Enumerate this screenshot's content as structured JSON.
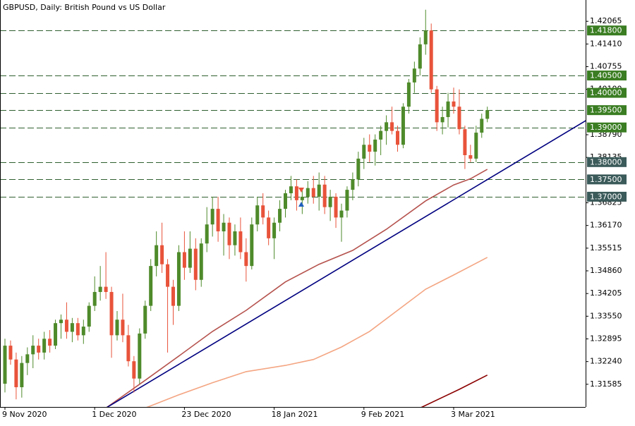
{
  "chart_data": {
    "type": "candlestick",
    "title": "GBPUSD, Daily:  British Pound vs US Dollar",
    "up_color": "#4e8a2a",
    "down_color": "#e8533a",
    "ylim": [
      1.3093,
      1.4268
    ],
    "yticks": [
      {
        "value": 1.42065,
        "label": "1.42065"
      },
      {
        "value": 1.4141,
        "label": "1.41410"
      },
      {
        "value": 1.40755,
        "label": "1.40755"
      },
      {
        "value": 1.401,
        "label": "1.40100"
      },
      {
        "value": 1.3879,
        "label": "1.38790"
      },
      {
        "value": 1.38135,
        "label": "1.38135"
      },
      {
        "value": 1.36825,
        "label": "1.36825"
      },
      {
        "value": 1.3617,
        "label": "1.36170"
      },
      {
        "value": 1.35515,
        "label": "1.35515"
      },
      {
        "value": 1.3486,
        "label": "1.34860"
      },
      {
        "value": 1.34205,
        "label": "1.34205"
      },
      {
        "value": 1.3355,
        "label": "1.33550"
      },
      {
        "value": 1.32895,
        "label": "1.32895"
      },
      {
        "value": 1.3224,
        "label": "1.32240"
      },
      {
        "value": 1.31585,
        "label": "1.31585"
      }
    ],
    "levels": [
      {
        "value": 1.418,
        "label": "1.41800",
        "color": "#3a7d22"
      },
      {
        "value": 1.405,
        "label": "1.40500",
        "color": "#3a7d22"
      },
      {
        "value": 1.4,
        "label": "1.40000",
        "color": "#3a7d22"
      },
      {
        "value": 1.395,
        "label": "1.39500",
        "color": "#3a7d22"
      },
      {
        "value": 1.39,
        "label": "1.39000",
        "color": "#3a7d22"
      },
      {
        "value": 1.38,
        "label": "1.38000",
        "color": "#3b5a5a"
      },
      {
        "value": 1.375,
        "label": "1.37500",
        "color": "#3b5a5a"
      },
      {
        "value": 1.37,
        "label": "1.37000",
        "color": "#3b5a5a"
      }
    ],
    "categories": [
      "9 Nov 2020",
      null,
      null,
      null,
      null,
      null,
      null,
      null,
      null,
      null,
      null,
      null,
      null,
      null,
      null,
      null,
      "1 Dec 2020",
      null,
      null,
      null,
      null,
      null,
      null,
      null,
      null,
      null,
      null,
      null,
      null,
      null,
      null,
      null,
      "23 Dec 2020",
      null,
      null,
      null,
      null,
      null,
      null,
      null,
      null,
      null,
      null,
      null,
      null,
      null,
      null,
      null,
      "18 Jan 2021",
      null,
      null,
      null,
      null,
      null,
      null,
      null,
      null,
      null,
      null,
      null,
      null,
      null,
      null,
      null,
      "9 Feb 2021",
      null,
      null,
      null,
      null,
      null,
      null,
      null,
      null,
      null,
      null,
      null,
      null,
      null,
      null,
      null,
      "3 Mar 2021",
      null,
      null,
      null,
      null,
      null,
      null
    ],
    "open": [
      1.316,
      1.327,
      1.323,
      1.315,
      1.322,
      1.3245,
      1.327,
      1.325,
      1.329,
      1.327,
      1.3335,
      1.3345,
      1.331,
      1.3335,
      1.33,
      1.3325,
      1.3385,
      1.3425,
      1.344,
      1.3425,
      1.33,
      1.3345,
      1.33,
      1.3225,
      1.3175,
      1.3305,
      1.3385,
      1.35,
      1.356,
      1.3505,
      1.344,
      1.3385,
      1.354,
      1.3495,
      1.355,
      1.346,
      1.3565,
      1.362,
      1.3665,
      1.36,
      1.3625,
      1.356,
      1.36,
      1.354,
      1.35,
      1.362,
      1.3675,
      1.364,
      1.358,
      1.3625,
      1.3665,
      1.371,
      1.373,
      1.369,
      1.37,
      1.3725,
      1.37,
      1.3735,
      1.367,
      1.37,
      1.364,
      1.366,
      1.372,
      1.375,
      1.381,
      1.385,
      1.383,
      1.3865,
      1.389,
      1.3915,
      1.389,
      1.385,
      1.396,
      1.403,
      1.407,
      1.414,
      1.418,
      1.401,
      1.3915,
      1.393,
      1.3975,
      1.396,
      1.3895,
      1.382,
      1.381,
      1.3885,
      1.3925
    ],
    "high": [
      1.329,
      1.3285,
      1.325,
      1.324,
      1.3265,
      1.33,
      1.329,
      1.331,
      1.3315,
      1.3345,
      1.336,
      1.3395,
      1.335,
      1.335,
      1.3345,
      1.3395,
      1.347,
      1.35,
      1.354,
      1.344,
      1.337,
      1.342,
      1.333,
      1.324,
      1.332,
      1.34,
      1.352,
      1.36,
      1.3625,
      1.352,
      1.346,
      1.356,
      1.36,
      1.36,
      1.358,
      1.358,
      1.367,
      1.37,
      1.37,
      1.365,
      1.364,
      1.362,
      1.364,
      1.358,
      1.364,
      1.37,
      1.371,
      1.366,
      1.364,
      1.369,
      1.372,
      1.376,
      1.375,
      1.372,
      1.3745,
      1.376,
      1.377,
      1.376,
      1.372,
      1.371,
      1.368,
      1.373,
      1.377,
      1.383,
      1.387,
      1.388,
      1.388,
      1.3905,
      1.3935,
      1.396,
      1.3905,
      1.397,
      1.404,
      1.409,
      1.416,
      1.424,
      1.42,
      1.402,
      1.396,
      1.4,
      1.4015,
      1.401,
      1.3905,
      1.385,
      1.3905,
      1.394,
      1.396
    ],
    "low": [
      1.3135,
      1.3215,
      1.3115,
      1.312,
      1.3185,
      1.3205,
      1.323,
      1.323,
      1.325,
      1.326,
      1.329,
      1.329,
      1.328,
      1.3285,
      1.3275,
      1.331,
      1.337,
      1.34,
      1.3405,
      1.3235,
      1.3285,
      1.328,
      1.321,
      1.3135,
      1.316,
      1.329,
      1.337,
      1.347,
      1.348,
      1.325,
      1.333,
      1.337,
      1.346,
      1.348,
      1.343,
      1.344,
      1.354,
      1.3585,
      1.357,
      1.353,
      1.352,
      1.353,
      1.352,
      1.3455,
      1.349,
      1.36,
      1.362,
      1.356,
      1.352,
      1.36,
      1.364,
      1.369,
      1.366,
      1.365,
      1.368,
      1.368,
      1.366,
      1.365,
      1.363,
      1.361,
      1.357,
      1.364,
      1.369,
      1.373,
      1.378,
      1.38,
      1.379,
      1.382,
      1.385,
      1.388,
      1.383,
      1.384,
      1.394,
      1.4,
      1.405,
      1.411,
      1.4,
      1.389,
      1.388,
      1.39,
      1.394,
      1.388,
      1.378,
      1.38,
      1.38,
      1.387,
      1.3915
    ],
    "close": [
      1.327,
      1.323,
      1.315,
      1.322,
      1.3245,
      1.327,
      1.325,
      1.329,
      1.327,
      1.3335,
      1.3345,
      1.331,
      1.3335,
      1.33,
      1.3325,
      1.3385,
      1.3425,
      1.344,
      1.3425,
      1.33,
      1.3345,
      1.33,
      1.3225,
      1.3175,
      1.3305,
      1.3385,
      1.35,
      1.356,
      1.3505,
      1.344,
      1.3385,
      1.354,
      1.3495,
      1.355,
      1.346,
      1.3565,
      1.362,
      1.3665,
      1.36,
      1.3625,
      1.356,
      1.36,
      1.354,
      1.35,
      1.362,
      1.3675,
      1.364,
      1.358,
      1.3625,
      1.3665,
      1.371,
      1.373,
      1.369,
      1.37,
      1.3725,
      1.37,
      1.3735,
      1.367,
      1.37,
      1.364,
      1.366,
      1.372,
      1.375,
      1.381,
      1.385,
      1.383,
      1.3865,
      1.389,
      1.3915,
      1.389,
      1.385,
      1.396,
      1.403,
      1.407,
      1.414,
      1.418,
      1.401,
      1.3915,
      1.393,
      1.3975,
      1.396,
      1.3895,
      1.382,
      1.381,
      1.3885,
      1.3925,
      1.395
    ],
    "indicators": [
      {
        "color": "#b5524d",
        "x": [
          18,
          25,
          31,
          37,
          43,
          50,
          56,
          62,
          68,
          75,
          80,
          83,
          86
        ],
        "values": [
          1.309,
          1.317,
          1.324,
          1.3311,
          1.3372,
          1.3454,
          1.3505,
          1.3545,
          1.3606,
          1.3688,
          1.3734,
          1.3752,
          1.3779
        ]
      },
      {
        "color": "#f4a582",
        "x": [
          25,
          31,
          37,
          43,
          50,
          55,
          60,
          65,
          70,
          75,
          80,
          86
        ],
        "values": [
          1.309,
          1.3128,
          1.3163,
          1.3195,
          1.3213,
          1.323,
          1.3266,
          1.3311,
          1.3372,
          1.3433,
          1.3474,
          1.3525
        ]
      },
      {
        "color": "#8b0000",
        "x": [
          74,
          81,
          86
        ],
        "values": [
          1.309,
          1.3144,
          1.3185
        ]
      },
      {
        "color": "#000080",
        "x": [
          18,
          104
        ],
        "values": [
          1.309,
          1.3924
        ]
      }
    ]
  }
}
